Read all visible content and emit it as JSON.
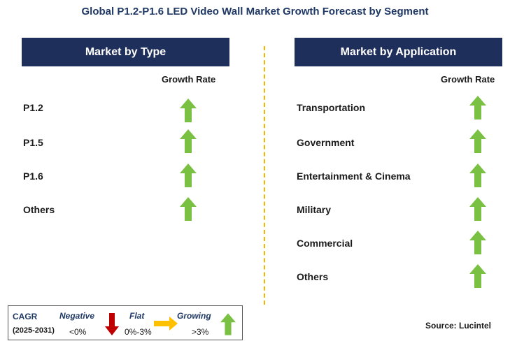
{
  "title": "Global P1.2-P1.6 LED Video Wall Market Growth Forecast by Segment",
  "left_panel": {
    "header": "Market by Type",
    "growth_header": "Growth Rate",
    "items": [
      {
        "label": "P1.2",
        "trend": "growing"
      },
      {
        "label": "P1.5",
        "trend": "growing"
      },
      {
        "label": "P1.6",
        "trend": "growing"
      },
      {
        "label": "Others",
        "trend": "growing"
      }
    ]
  },
  "right_panel": {
    "header": "Market by Application",
    "growth_header": "Growth Rate",
    "items": [
      {
        "label": "Transportation",
        "trend": "growing"
      },
      {
        "label": "Government",
        "trend": "growing"
      },
      {
        "label": "Entertainment & Cinema",
        "trend": "growing"
      },
      {
        "label": "Military",
        "trend": "growing"
      },
      {
        "label": "Commercial",
        "trend": "growing"
      },
      {
        "label": "Others",
        "trend": "growing"
      }
    ]
  },
  "legend": {
    "cagr_label": "CAGR",
    "period": "(2025-2031)",
    "negative_label": "Negative",
    "negative_range": "<0%",
    "flat_label": "Flat",
    "flat_range": "0%-3%",
    "growing_label": "Growing",
    "growing_range": ">3%"
  },
  "source": "Source: Lucintel",
  "colors": {
    "header_bg": "#1f2f5c",
    "growing": "#7ac143",
    "negative": "#c00000",
    "flat": "#ffc000",
    "divider": "#f2b400"
  },
  "icons": {
    "growing": "up-arrow-icon",
    "negative": "down-arrow-icon",
    "flat": "right-arrow-icon"
  }
}
